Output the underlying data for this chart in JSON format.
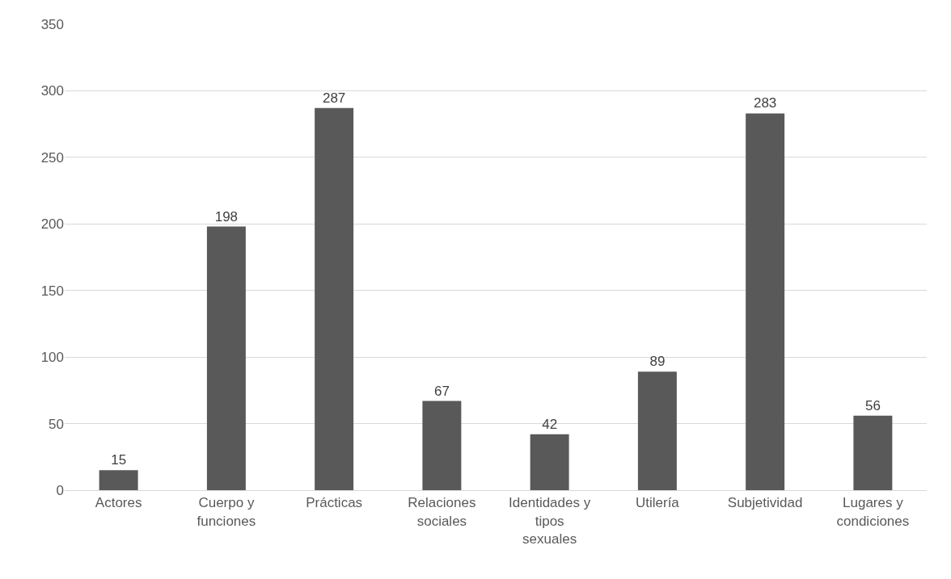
{
  "chart_data": {
    "type": "bar",
    "categories": [
      "Actores",
      "Cuerpo y funciones",
      "Prácticas",
      "Relaciones sociales",
      "Identidades y tipos sexuales",
      "Utilería",
      "Subjetividad",
      "Lugares y condiciones"
    ],
    "values": [
      15,
      198,
      287,
      67,
      42,
      89,
      283,
      56
    ],
    "color": "#595959",
    "ylim": [
      0,
      350
    ],
    "yticks": [
      0,
      50,
      100,
      150,
      200,
      250,
      300,
      350
    ],
    "grid": "y",
    "data_labels": true,
    "legend": false
  }
}
